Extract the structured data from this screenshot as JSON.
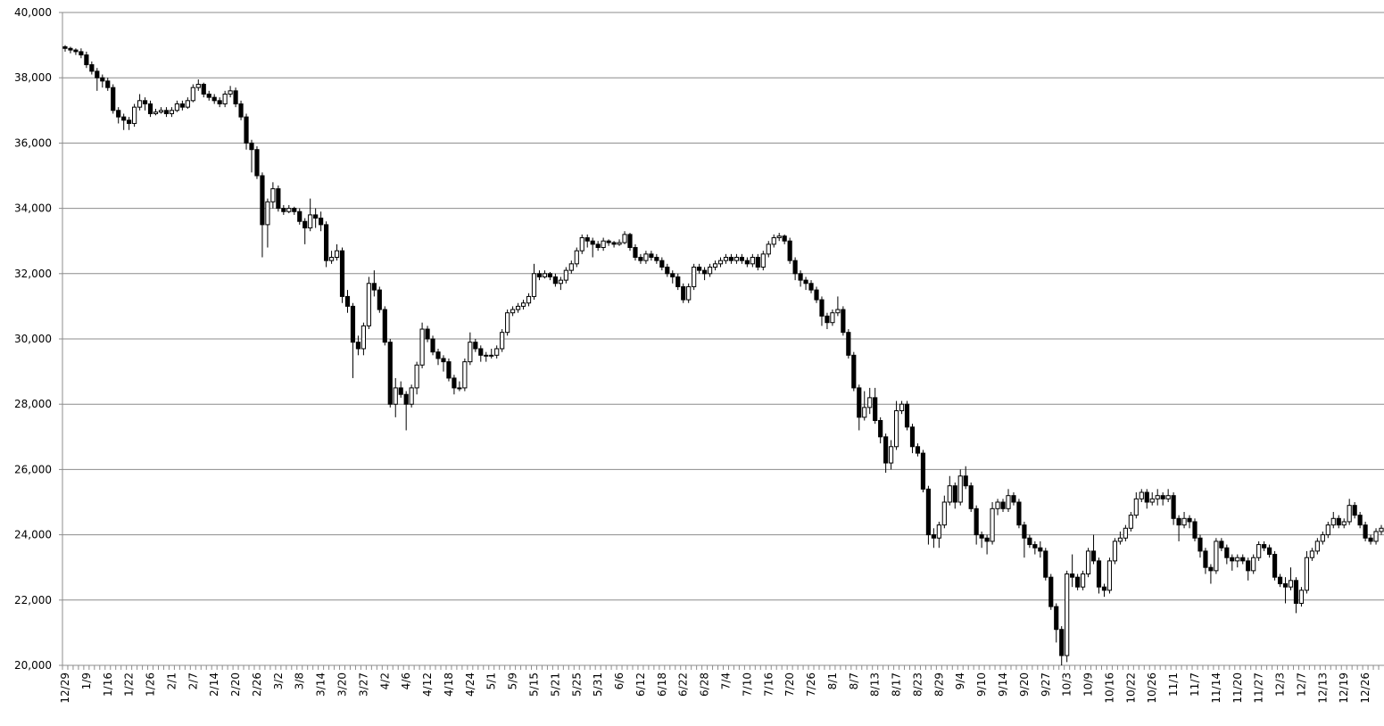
{
  "chart_data": {
    "type": "candlestick",
    "ylim": [
      20000,
      40000
    ],
    "yticks": [
      {
        "value": 20000,
        "label": "20,000"
      },
      {
        "value": 22000,
        "label": "22,000"
      },
      {
        "value": 24000,
        "label": "24,000"
      },
      {
        "value": 26000,
        "label": "26,000"
      },
      {
        "value": 28000,
        "label": "28,000"
      },
      {
        "value": 30000,
        "label": "30,000"
      },
      {
        "value": 32000,
        "label": "32,000"
      },
      {
        "value": 34000,
        "label": "34,000"
      },
      {
        "value": 36000,
        "label": "36,000"
      },
      {
        "value": 38000,
        "label": "38,000"
      },
      {
        "value": 40000,
        "label": "40,000"
      }
    ],
    "grid": true,
    "up_color": "#ffffff",
    "down_color": "#000000",
    "line_color": "#000000",
    "categories": [
      "12/29",
      null,
      null,
      null,
      "1/9",
      null,
      null,
      null,
      "1/16",
      null,
      null,
      null,
      "1/22",
      null,
      null,
      null,
      "1/26",
      null,
      null,
      null,
      "2/1",
      null,
      null,
      null,
      "2/7",
      null,
      null,
      null,
      "2/14",
      null,
      null,
      null,
      "2/20",
      null,
      null,
      null,
      "2/26",
      null,
      null,
      null,
      "3/2",
      null,
      null,
      null,
      "3/8",
      null,
      null,
      null,
      "3/14",
      null,
      null,
      null,
      "3/20",
      null,
      null,
      null,
      "3/27",
      null,
      null,
      null,
      "4/2",
      null,
      null,
      null,
      "4/6",
      null,
      null,
      null,
      "4/12",
      null,
      null,
      null,
      "4/18",
      null,
      null,
      null,
      "4/24",
      null,
      null,
      null,
      "5/1",
      null,
      null,
      null,
      "5/9",
      null,
      null,
      null,
      "5/15",
      null,
      null,
      null,
      "5/21",
      null,
      null,
      null,
      "5/25",
      null,
      null,
      null,
      "5/31",
      null,
      null,
      null,
      "6/6",
      null,
      null,
      null,
      "6/12",
      null,
      null,
      null,
      "6/18",
      null,
      null,
      null,
      "6/22",
      null,
      null,
      null,
      "6/28",
      null,
      null,
      null,
      "7/4",
      null,
      null,
      null,
      "7/10",
      null,
      null,
      null,
      "7/16",
      null,
      null,
      null,
      "7/20",
      null,
      null,
      null,
      "7/26",
      null,
      null,
      null,
      "8/1",
      null,
      null,
      null,
      "8/7",
      null,
      null,
      null,
      "8/13",
      null,
      null,
      null,
      "8/17",
      null,
      null,
      null,
      "8/23",
      null,
      null,
      null,
      "8/29",
      null,
      null,
      null,
      "9/4",
      null,
      null,
      null,
      "9/10",
      null,
      null,
      null,
      "9/14",
      null,
      null,
      null,
      "9/20",
      null,
      null,
      null,
      "9/27",
      null,
      null,
      null,
      "10/3",
      null,
      null,
      null,
      "10/9",
      null,
      null,
      null,
      "10/16",
      null,
      null,
      null,
      "10/22",
      null,
      null,
      null,
      "10/26",
      null,
      null,
      null,
      "11/1",
      null,
      null,
      null,
      "11/7",
      null,
      null,
      null,
      "11/14",
      null,
      null,
      null,
      "11/20",
      null,
      null,
      null,
      "11/27",
      null,
      null,
      null,
      "12/3",
      null,
      null,
      null,
      "12/7",
      null,
      null,
      null,
      "12/13",
      null,
      null,
      null,
      "12/19",
      null,
      null,
      null,
      "12/26",
      null,
      null,
      null
    ],
    "open": [
      38950,
      38900,
      38850,
      38800,
      38700,
      38400,
      38200,
      38000,
      37900,
      37700,
      37000,
      36800,
      36700,
      36600,
      37100,
      37300,
      37200,
      36900,
      36950,
      37000,
      36900,
      37000,
      37200,
      37100,
      37300,
      37700,
      37800,
      37500,
      37400,
      37300,
      37200,
      37500,
      37600,
      37200,
      36800,
      36000,
      35800,
      35000,
      33500,
      34200,
      34600,
      34000,
      33900,
      34000,
      33900,
      33600,
      33400,
      33800,
      33700,
      33500,
      32400,
      32500,
      32700,
      31300,
      31000,
      29900,
      29700,
      30400,
      31700,
      31500,
      30900,
      29900,
      28000,
      28500,
      28300,
      28000,
      28500,
      29200,
      30300,
      30000,
      29600,
      29400,
      29300,
      28800,
      28500,
      28500,
      29300,
      29900,
      29700,
      29500,
      29500,
      29500,
      29700,
      30200,
      30800,
      30900,
      31000,
      31100,
      31300,
      32000,
      31900,
      32000,
      31900,
      31700,
      31800,
      32100,
      32300,
      32700,
      33100,
      33000,
      32900,
      32800,
      33000,
      32950,
      32900,
      32950,
      33200,
      32800,
      32500,
      32400,
      32600,
      32500,
      32400,
      32200,
      32000,
      31900,
      31600,
      31200,
      31600,
      32200,
      32100,
      32000,
      32200,
      32300,
      32400,
      32500,
      32400,
      32500,
      32400,
      32300,
      32500,
      32200,
      32600,
      32900,
      33100,
      33150,
      33000,
      32400,
      32000,
      31800,
      31700,
      31500,
      31200,
      30700,
      30500,
      30800,
      30900,
      30200,
      29500,
      28500,
      27600,
      27900,
      28200,
      27500,
      27000,
      26200,
      26700,
      27800,
      28000,
      27300,
      26700,
      26500,
      25400,
      24000,
      23900,
      24300,
      25000,
      25500,
      25000,
      25800,
      25500,
      24800,
      24000,
      23900,
      23800,
      24800,
      25000,
      24800,
      25200,
      25000,
      24300,
      23900,
      23700,
      23600,
      23500,
      22700,
      21800,
      21100,
      20300,
      22800,
      22700,
      22400,
      22800,
      23500,
      23200,
      22400,
      22300,
      23200,
      23800,
      23900,
      24200,
      24600,
      25100,
      25300,
      25000,
      25100,
      25200,
      25100,
      25200,
      24500,
      24300,
      24500,
      24400,
      23900,
      23500,
      23000,
      22900,
      23800,
      23600,
      23300,
      23200,
      23300,
      23200,
      22900,
      23300,
      23700,
      23600,
      23400,
      22700,
      22500,
      22400,
      22600,
      21900,
      22300,
      23300,
      23500,
      23800,
      24000,
      24300,
      24500,
      24300,
      24400,
      24900,
      24600,
      24300,
      23900,
      23800,
      24100
    ],
    "high": [
      39000,
      38950,
      38900,
      38900,
      38800,
      38500,
      38300,
      38100,
      38000,
      37800,
      37100,
      36900,
      36800,
      37200,
      37500,
      37400,
      37300,
      37050,
      37100,
      37100,
      37100,
      37300,
      37300,
      37400,
      37800,
      37950,
      37850,
      37600,
      37500,
      37400,
      37600,
      37750,
      37700,
      37300,
      36900,
      36100,
      35900,
      35100,
      34300,
      34800,
      34700,
      34100,
      34100,
      34050,
      34000,
      33700,
      34300,
      34000,
      33900,
      33600,
      32700,
      32900,
      32800,
      31500,
      31100,
      30100,
      30500,
      31900,
      32100,
      31600,
      31000,
      30000,
      28800,
      28700,
      28400,
      28600,
      29300,
      30500,
      30400,
      30100,
      29700,
      29500,
      29400,
      28900,
      28700,
      29400,
      30200,
      30000,
      29800,
      29600,
      29700,
      29800,
      30300,
      30900,
      31000,
      31100,
      31200,
      31400,
      32300,
      32100,
      32100,
      32050,
      32000,
      31900,
      32200,
      32400,
      32800,
      33200,
      33200,
      33100,
      33000,
      33100,
      33050,
      33000,
      33050,
      33300,
      33250,
      32900,
      32600,
      32700,
      32700,
      32600,
      32500,
      32300,
      32100,
      32000,
      31700,
      31700,
      32300,
      32300,
      32200,
      32300,
      32400,
      32500,
      32600,
      32600,
      32600,
      32600,
      32500,
      32600,
      32600,
      32700,
      33000,
      33200,
      33250,
      33200,
      33100,
      32500,
      32100,
      31900,
      31800,
      31600,
      31300,
      30800,
      30900,
      31300,
      31000,
      30300,
      29600,
      28600,
      28400,
      28500,
      28500,
      27600,
      27100,
      26900,
      28100,
      28100,
      28100,
      27400,
      26800,
      26600,
      25500,
      24200,
      24400,
      25200,
      25800,
      25600,
      26000,
      26100,
      25600,
      24900,
      24100,
      24000,
      25000,
      25100,
      25100,
      25400,
      25300,
      25100,
      24400,
      24000,
      23800,
      23800,
      23600,
      22800,
      21900,
      21200,
      22900,
      23400,
      22800,
      22900,
      23600,
      24000,
      23300,
      22500,
      23300,
      23900,
      24100,
      24300,
      24700,
      25300,
      25400,
      25400,
      25300,
      25400,
      25300,
      25400,
      25300,
      24600,
      24700,
      24600,
      24500,
      24000,
      23600,
      23100,
      23900,
      23900,
      23700,
      23400,
      23400,
      23400,
      23300,
      23400,
      23800,
      23800,
      23700,
      23500,
      22800,
      22700,
      23000,
      22700,
      22400,
      23500,
      23600,
      23900,
      24100,
      24400,
      24700,
      24600,
      24500,
      25100,
      25000,
      24700,
      24400,
      24000,
      24200,
      24300
    ],
    "low": [
      38800,
      38750,
      38700,
      38600,
      38300,
      38100,
      37600,
      37700,
      37600,
      36900,
      36600,
      36400,
      36400,
      36500,
      37000,
      37000,
      36800,
      36850,
      36900,
      36800,
      36800,
      36950,
      37000,
      37050,
      37250,
      37600,
      37400,
      37300,
      37200,
      37100,
      37100,
      37400,
      37100,
      36700,
      35800,
      35100,
      34900,
      32500,
      32800,
      34000,
      33900,
      33800,
      33850,
      33800,
      33500,
      32900,
      33300,
      33400,
      33300,
      32200,
      32300,
      32400,
      31100,
      30800,
      28800,
      29500,
      29500,
      30300,
      31300,
      30800,
      29800,
      27900,
      27600,
      28200,
      27200,
      27900,
      28300,
      29100,
      29900,
      29500,
      29200,
      29000,
      28700,
      28300,
      28400,
      28400,
      29200,
      29600,
      29300,
      29300,
      29400,
      29400,
      29600,
      30100,
      30700,
      30800,
      30900,
      31000,
      31200,
      31800,
      31850,
      31800,
      31600,
      31500,
      31700,
      32000,
      32200,
      32600,
      32800,
      32500,
      32700,
      32700,
      32850,
      32800,
      32850,
      32900,
      32700,
      32400,
      32300,
      32300,
      32400,
      32300,
      32100,
      31900,
      31700,
      31500,
      31100,
      31100,
      31500,
      32000,
      31800,
      31900,
      32100,
      32200,
      32300,
      32300,
      32300,
      32300,
      32200,
      32200,
      32100,
      32100,
      32500,
      32800,
      33000,
      32900,
      32300,
      31800,
      31600,
      31500,
      31400,
      31100,
      30400,
      30300,
      30400,
      30700,
      30100,
      29400,
      28400,
      27200,
      27500,
      27700,
      27400,
      26800,
      25900,
      26000,
      26600,
      27700,
      27200,
      26500,
      26400,
      25300,
      23700,
      23600,
      23600,
      24200,
      24900,
      24800,
      24900,
      25400,
      24700,
      23700,
      23600,
      23400,
      23700,
      24600,
      24700,
      24700,
      24900,
      24200,
      23300,
      23600,
      23400,
      23300,
      22600,
      21700,
      20700,
      20000,
      20100,
      22400,
      22300,
      22300,
      22700,
      23100,
      22200,
      22100,
      22200,
      23100,
      23700,
      23800,
      24100,
      24500,
      25000,
      24800,
      24900,
      24900,
      24900,
      25000,
      24300,
      23800,
      24200,
      24200,
      23800,
      23300,
      22800,
      22500,
      22800,
      23500,
      23100,
      22900,
      23000,
      23100,
      22600,
      22800,
      23200,
      23500,
      23300,
      22600,
      22400,
      21900,
      22300,
      21600,
      21800,
      22200,
      23200,
      23400,
      23700,
      23900,
      24200,
      24200,
      24200,
      24300,
      24500,
      24200,
      23800,
      23700,
      23700,
      24000
    ],
    "close": [
      38900,
      38850,
      38800,
      38700,
      38400,
      38200,
      38000,
      37900,
      37700,
      37000,
      36800,
      36700,
      36600,
      37100,
      37300,
      37200,
      36900,
      36950,
      37000,
      36900,
      37000,
      37200,
      37100,
      37300,
      37700,
      37800,
      37500,
      37400,
      37300,
      37200,
      37500,
      37600,
      37200,
      36800,
      36000,
      35800,
      35000,
      33500,
      34200,
      34600,
      34000,
      33900,
      34000,
      33900,
      33600,
      33400,
      33800,
      33700,
      33500,
      32400,
      32500,
      32700,
      31300,
      31000,
      29900,
      29700,
      30400,
      31700,
      31500,
      30900,
      29900,
      28000,
      28500,
      28300,
      28000,
      28500,
      29200,
      30300,
      30000,
      29600,
      29400,
      29300,
      28800,
      28500,
      28500,
      29300,
      29900,
      29700,
      29500,
      29500,
      29500,
      29700,
      30200,
      30800,
      30900,
      31000,
      31100,
      31300,
      32000,
      31900,
      32000,
      31900,
      31700,
      31800,
      32100,
      32300,
      32700,
      33100,
      33000,
      32900,
      32800,
      33000,
      32950,
      32900,
      32950,
      33200,
      32800,
      32500,
      32400,
      32600,
      32500,
      32400,
      32200,
      32000,
      31900,
      31600,
      31200,
      31600,
      32200,
      32100,
      32000,
      32200,
      32300,
      32400,
      32500,
      32400,
      32500,
      32400,
      32300,
      32500,
      32200,
      32600,
      32900,
      33100,
      33150,
      33000,
      32400,
      32000,
      31800,
      31700,
      31500,
      31200,
      30700,
      30500,
      30800,
      30900,
      30200,
      29500,
      28500,
      27600,
      27900,
      28200,
      27500,
      27000,
      26200,
      26700,
      27800,
      28000,
      27300,
      26700,
      26500,
      25400,
      24000,
      23900,
      24300,
      25000,
      25500,
      25000,
      25800,
      25500,
      24800,
      24000,
      23900,
      23800,
      24800,
      25000,
      24800,
      25200,
      25000,
      24300,
      23900,
      23700,
      23600,
      23500,
      22700,
      21800,
      21100,
      20300,
      22800,
      22700,
      22400,
      22800,
      23500,
      23200,
      22400,
      22300,
      23200,
      23800,
      23900,
      24200,
      24600,
      25100,
      25300,
      25000,
      25100,
      25200,
      25100,
      25200,
      24500,
      24300,
      24500,
      24400,
      23900,
      23500,
      23000,
      22900,
      23800,
      23600,
      23300,
      23200,
      23300,
      23200,
      22900,
      23300,
      23700,
      23600,
      23400,
      22700,
      22500,
      22400,
      22600,
      21900,
      22300,
      23300,
      23500,
      23800,
      24000,
      24300,
      24500,
      24300,
      24400,
      24900,
      24600,
      24300,
      23900,
      23800,
      24100,
      24200
    ]
  }
}
